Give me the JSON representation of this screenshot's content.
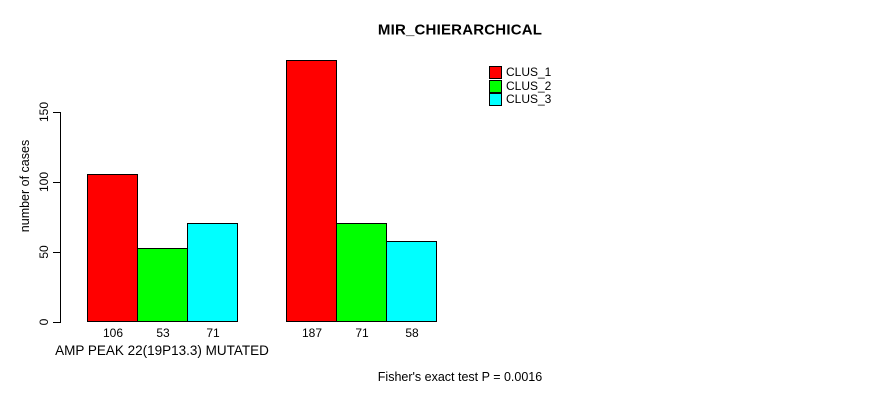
{
  "figure": {
    "background": "#ffffff",
    "axis_color": "#000000"
  },
  "chart_data": {
    "type": "bar",
    "title": "MIR_CHIERARCHICAL",
    "ylabel": "number of cases",
    "xlabel": "AMP PEAK 22(19P13.3) MUTATED",
    "annotation": "Fisher's exact test P = 0.0016",
    "yticks": [
      0,
      50,
      100,
      150
    ],
    "ylim": [
      0,
      187
    ],
    "grid": false,
    "legend_position": "top-right",
    "bar_value_labels_shown": true,
    "categories": [
      "AMP PEAK 22(19P13.3) MUTATED",
      ""
    ],
    "series": [
      {
        "name": "CLUS_1",
        "color": "#ff0000",
        "values": [
          106,
          187
        ]
      },
      {
        "name": "CLUS_2",
        "color": "#00ff00",
        "values": [
          53,
          71
        ]
      },
      {
        "name": "CLUS_3",
        "color": "#00ffff",
        "values": [
          71,
          58
        ]
      }
    ]
  }
}
